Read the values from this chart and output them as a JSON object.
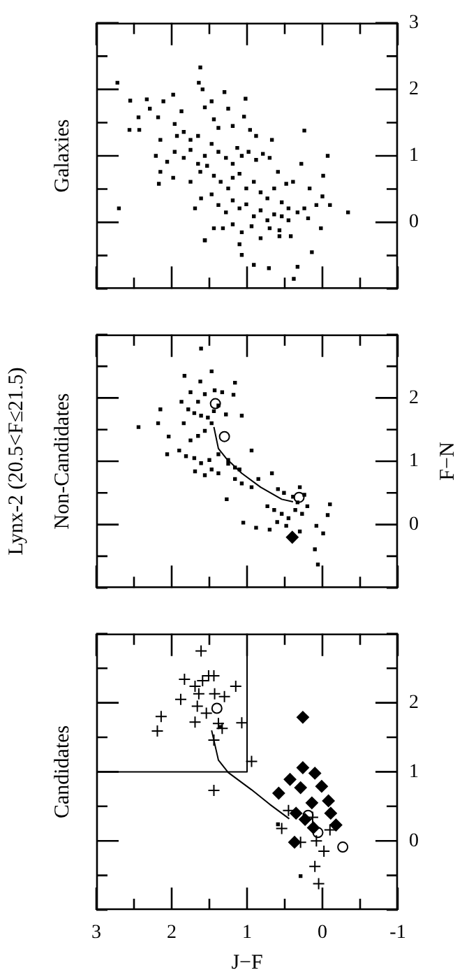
{
  "chart_data": [
    {
      "type": "scatter",
      "subtitle": "Galaxies",
      "tick_labels": "y",
      "xlim": [
        3,
        -1
      ],
      "ylim": [
        -1,
        3
      ],
      "xticks": [
        3,
        {
          "value": 2.5,
          "label": null
        },
        2,
        {
          "value": 1.5,
          "label": null
        },
        1,
        {
          "value": 0.5,
          "label": null
        },
        0,
        {
          "value": -0.5,
          "label": null
        },
        -1
      ],
      "yticks": [
        {
          "value": -1,
          "label": null
        },
        {
          "value": -0.5,
          "label": null
        },
        0,
        {
          "value": 0.5,
          "label": null
        },
        1,
        {
          "value": 1.5,
          "label": null
        },
        2,
        {
          "value": 2.5,
          "label": null
        },
        3
      ],
      "series": [
        {
          "type": "scatter",
          "marker": "square",
          "color": "#000000",
          "values": [
            2.1,
            0.21,
            1.83,
            1.58,
            1.39,
            1.39,
            1.85,
            1.71,
            1.58,
            1.24,
            1.82,
            1.92,
            1.48,
            1.3,
            1.67,
            1.36,
            1.24,
            1.3,
            2.33,
            2.1,
            2.0,
            1.73,
            1.82,
            1.55,
            1.42,
            1.96,
            1.71,
            1.45,
            1.86,
            1.59,
            1.39,
            1.3,
            1.24,
            1.38,
            1.0,
            0.7,
            1.0,
            0.76,
            0.91,
            1.06,
            0.97,
            1.09,
            0.88,
            1.0,
            1.18,
            1.06,
            0.97,
            0.88,
            1.12,
            1.0,
            1.06,
            0.94,
            1.03,
            0.97,
            0.76,
            0.58,
            0.61,
            0.88,
            0.51,
            0.39,
            0.26,
            0.15,
            0.58,
            0.67,
            0.61,
            0.76,
            0.85,
            0.7,
            0.61,
            0.51,
            0.67,
            0.73,
            0.51,
            0.61,
            0.45,
            0.36,
            0.51,
            0.3,
            0.21,
            0.15,
            0.21,
            0.26,
            -0.09,
            0.06,
            0.21,
            0.36,
            0.42,
            0.26,
            0.15,
            0.33,
            0.21,
            0.27,
            0.09,
            0.18,
            0.03,
            0.12,
            0.09,
            0.03,
            -0.21,
            -0.12,
            -0.09,
            -0.24,
            -0.06,
            -0.15,
            -0.03,
            -0.09,
            -0.27,
            -0.09,
            -0.33,
            -0.21,
            -0.27,
            -0.49,
            -0.64,
            -0.69,
            -0.85,
            -0.67,
            -0.45
          ],
          "x": [
            2.72,
            2.7,
            2.55,
            2.44,
            2.56,
            2.43,
            2.33,
            2.29,
            2.18,
            2.15,
            2.11,
            1.98,
            1.96,
            1.93,
            1.87,
            1.84,
            1.75,
            1.65,
            1.62,
            1.64,
            1.59,
            1.56,
            1.47,
            1.44,
            1.38,
            1.3,
            1.25,
            1.19,
            1.02,
            1.04,
            0.96,
            0.88,
            0.67,
            0.24,
            -0.07,
            -0.01,
            2.21,
            2.15,
            2.06,
            1.96,
            1.84,
            1.75,
            1.65,
            1.56,
            1.47,
            1.38,
            1.28,
            1.19,
            1.13,
            1.07,
            0.98,
            0.88,
            0.79,
            0.7,
            0.59,
            0.48,
            0.39,
            0.28,
            0.17,
            0.0,
            -0.1,
            -0.34,
            2.17,
            1.98,
            1.75,
            1.62,
            1.53,
            1.44,
            1.35,
            1.25,
            1.19,
            1.1,
            1.01,
            0.91,
            0.82,
            0.73,
            0.64,
            0.54,
            0.45,
            0.33,
            0.24,
            0.08,
            0.02,
            0.19,
            1.69,
            1.61,
            1.47,
            1.38,
            1.28,
            1.19,
            1.1,
            1.01,
            0.91,
            0.82,
            0.73,
            0.64,
            0.54,
            0.45,
            0.42,
            0.57,
            0.7,
            0.82,
            0.94,
            1.07,
            1.19,
            1.32,
            1.56,
            1.44,
            1.1,
            0.57,
            1.56,
            1.07,
            0.91,
            0.71,
            0.38,
            0.33,
            0.14
          ]
        }
      ]
    },
    {
      "type": "scatter",
      "title": "Lynx-2 (20.5<F≤21.5)",
      "subtitle": "Non-Candidates",
      "ylabel": "F−N",
      "tick_labels": "y",
      "xlim": [
        3,
        -1
      ],
      "ylim": [
        -1,
        3
      ],
      "xticks": [
        3,
        {
          "value": 2.5,
          "label": null
        },
        2,
        {
          "value": 1.5,
          "label": null
        },
        1,
        {
          "value": 0.5,
          "label": null
        },
        0,
        {
          "value": -0.5,
          "label": null
        },
        -1
      ],
      "yticks": [
        {
          "value": -1,
          "label": null
        },
        {
          "value": -0.5,
          "label": null
        },
        0,
        {
          "value": 0.5,
          "label": null
        },
        1,
        {
          "value": 1.5,
          "label": null
        },
        2,
        {
          "value": 2.5,
          "label": null
        },
        {
          "value": 3,
          "label": null
        }
      ],
      "series": [
        {
          "type": "scatter",
          "marker": "square",
          "color": "#000000",
          "values": [
            2.78,
            2.35,
            2.42,
            2.26,
            2.24,
            1.82,
            1.54,
            1.6,
            2.09,
            1.94,
            2.06,
            2.12,
            2.09,
            2.05,
            1.94,
            1.82,
            1.76,
            1.72,
            1.69,
            1.79,
            1.88,
            1.74,
            1.6,
            1.48,
            1.4,
            1.33,
            1.6,
            1.39,
            1.11,
            1.17,
            1.08,
            1.05,
            0.97,
            1.02,
            1.11,
            1.02,
            0.84,
            0.78,
            0.87,
            0.81,
            0.96,
            0.9,
            0.87,
            1.17,
            1.72,
            0.72,
            0.65,
            0.59,
            0.72,
            0.4,
            0.81,
            0.56,
            0.5,
            0.44,
            0.59,
            0.47,
            0.35,
            0.29,
            0.23,
            0.17,
            0.1,
            0.23,
            0.17,
            0.29,
            0.04,
            -0.02,
            -0.11,
            -0.02,
            -0.14,
            0.15,
            0.32,
            0.03,
            -0.05,
            -0.08,
            -0.39,
            -0.63
          ],
          "x": [
            1.61,
            1.83,
            1.47,
            1.62,
            1.16,
            2.15,
            2.44,
            2.18,
            1.75,
            1.65,
            1.56,
            1.43,
            1.33,
            1.18,
            1.87,
            1.78,
            1.7,
            1.61,
            1.52,
            1.44,
            1.38,
            1.28,
            1.47,
            1.56,
            1.65,
            1.75,
            1.84,
            2.04,
            2.06,
            1.9,
            1.81,
            1.7,
            1.61,
            1.5,
            1.38,
            1.25,
            1.69,
            1.56,
            1.47,
            1.38,
            1.25,
            1.16,
            1.1,
            0.94,
            1.07,
            1.16,
            1.07,
            0.94,
            0.85,
            1.27,
            0.67,
            0.59,
            0.51,
            0.39,
            0.3,
            0.24,
            0.33,
            0.73,
            0.64,
            0.54,
            0.45,
            0.36,
            0.27,
            0.2,
            0.6,
            0.48,
            0.3,
            0.08,
            -0.01,
            -0.07,
            -0.1,
            1.05,
            0.88,
            0.7,
            0.1,
            0.06
          ]
        },
        {
          "type": "scatter",
          "marker": "diamond",
          "color": "#000000",
          "values": [
            -0.2
          ],
          "x": [
            0.4
          ]
        },
        {
          "type": "scatter",
          "marker": "circle",
          "color": "#000000",
          "values": [
            1.91,
            1.39,
            0.43
          ],
          "x": [
            1.42,
            1.3,
            0.31
          ]
        },
        {
          "type": "line",
          "marker": "none",
          "color": "#000000",
          "values": [
            1.54,
            1.2,
            1.05,
            0.81,
            0.59,
            0.4,
            0.36
          ],
          "x": [
            1.44,
            1.38,
            1.28,
            1.07,
            0.82,
            0.54,
            0.39
          ]
        }
      ]
    },
    {
      "type": "scatter",
      "subtitle": "Candidates",
      "xlabel": "J−F",
      "xlim": [
        3,
        -1
      ],
      "ylim": [
        -1,
        3
      ],
      "xticks": [
        3,
        {
          "value": 2.5,
          "label": null
        },
        2,
        {
          "value": 1.5,
          "label": null
        },
        1,
        {
          "value": 0.5,
          "label": null
        },
        0,
        {
          "value": -0.5,
          "label": null
        },
        -1
      ],
      "yticks": [
        {
          "value": -1,
          "label": null
        },
        {
          "value": -0.5,
          "label": null
        },
        0,
        {
          "value": 0.5,
          "label": null
        },
        1,
        {
          "value": 1.5,
          "label": null
        },
        2,
        {
          "value": 2.5,
          "label": null
        },
        {
          "value": 3,
          "label": null
        }
      ],
      "series": [
        {
          "type": "scatter",
          "marker": "cross",
          "color": "#000000",
          "values": [
            2.75,
            2.34,
            2.24,
            2.32,
            2.39,
            2.39,
            2.13,
            2.13,
            2.09,
            2.24,
            2.05,
            1.95,
            1.85,
            1.8,
            1.72,
            1.7,
            1.63,
            1.71,
            1.59,
            1.46,
            1.15,
            0.73,
            0.44,
            0.18,
            -0.02,
            0.0,
            -0.15,
            -0.37,
            -0.62,
            0.16,
            0.34
          ],
          "x": [
            1.61,
            1.83,
            1.69,
            1.59,
            1.51,
            1.44,
            1.64,
            1.43,
            1.3,
            1.15,
            1.88,
            1.66,
            1.54,
            2.14,
            1.69,
            1.38,
            1.33,
            1.07,
            2.19,
            1.44,
            0.94,
            1.44,
            0.45,
            0.54,
            0.29,
            0.08,
            -0.02,
            0.1,
            0.05,
            -0.1,
            0.13
          ]
        },
        {
          "type": "scatter",
          "marker": "diamond",
          "color": "#000000",
          "values": [
            1.79,
            1.06,
            0.98,
            0.89,
            0.77,
            0.79,
            0.69,
            0.58,
            0.55,
            0.4,
            0.4,
            0.31,
            0.19,
            0.23,
            -0.02
          ],
          "x": [
            0.26,
            0.26,
            0.1,
            0.43,
            0.29,
            0.01,
            0.58,
            -0.08,
            0.14,
            0.35,
            -0.11,
            0.23,
            0.12,
            -0.18,
            0.37
          ]
        },
        {
          "type": "scatter",
          "marker": "circle",
          "color": "#000000",
          "values": [
            1.92,
            0.37,
            0.12,
            -0.09
          ],
          "x": [
            1.4,
            0.19,
            0.06,
            -0.27
          ]
        },
        {
          "type": "scatter",
          "marker": "square",
          "color": "#000000",
          "values": [
            1.65,
            0.24,
            -0.51
          ],
          "x": [
            1.35,
            0.59,
            0.29
          ]
        },
        {
          "type": "line",
          "marker": "none",
          "color": "#000000",
          "values": [
            1.6,
            1.17,
            0.99,
            0.74,
            0.53,
            0.32
          ],
          "x": [
            1.47,
            1.38,
            1.25,
            0.94,
            0.7,
            0.44
          ]
        },
        {
          "type": "line",
          "marker": "none",
          "color": "#000000",
          "values": [
            1,
            1,
            3
          ],
          "x": [
            3,
            1,
            1
          ]
        }
      ]
    }
  ]
}
